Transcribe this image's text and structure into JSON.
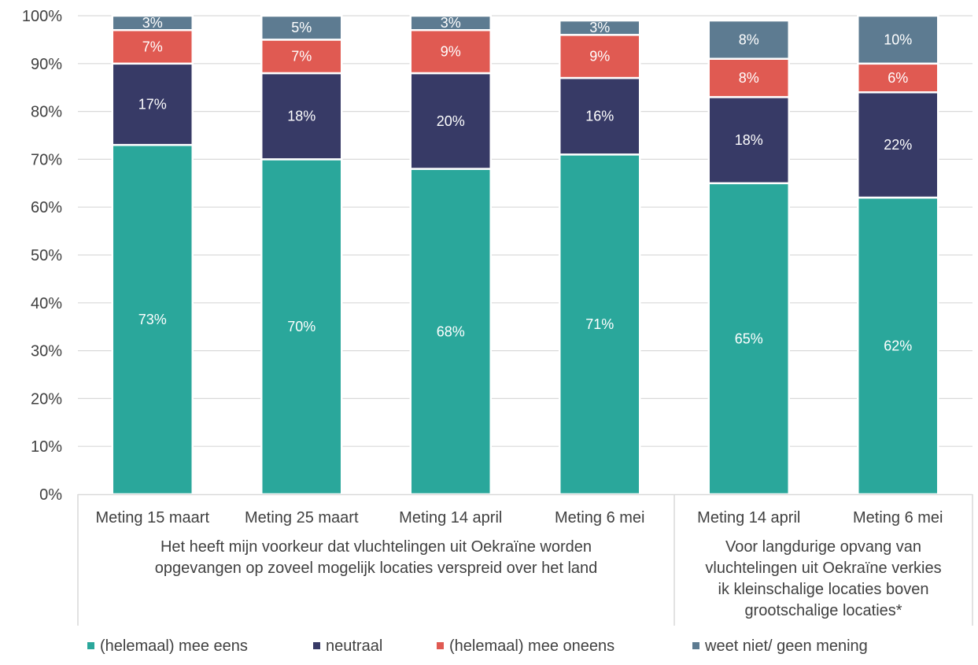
{
  "chart_data": {
    "type": "bar",
    "stacked": true,
    "ylim": [
      0,
      100
    ],
    "y_ticks": [
      "0%",
      "10%",
      "20%",
      "30%",
      "40%",
      "50%",
      "60%",
      "70%",
      "80%",
      "90%",
      "100%"
    ],
    "grid": true,
    "legend_position": "bottom",
    "categories": [
      "Meting 15 maart",
      "Meting 25 maart",
      "Meting 14 april",
      "Meting 6 mei",
      "Meting 14 april",
      "Meting 6 mei"
    ],
    "groups": [
      {
        "label": [
          "Het heeft mijn voorkeur dat vluchtelingen uit Oekraïne worden",
          "opgevangen op zoveel mogelijk locaties verspreid over het land"
        ],
        "categories": [
          0,
          1,
          2,
          3
        ]
      },
      {
        "label": [
          "Voor  langdurige opvang van",
          "vluchtelingen uit Oekraïne verkies",
          "ik kleinschalige locaties boven",
          "grootschalige locaties*"
        ],
        "categories": [
          4,
          5
        ]
      }
    ],
    "series": [
      {
        "name": "(helemaal) mee eens",
        "color": "#2aa79b",
        "values": [
          73,
          70,
          68,
          71,
          65,
          62
        ],
        "labels": [
          "73%",
          "70%",
          "68%",
          "71%",
          "65%",
          "62%"
        ]
      },
      {
        "name": "neutraal",
        "color": "#373a66",
        "values": [
          17,
          18,
          20,
          16,
          18,
          22
        ],
        "labels": [
          "17%",
          "18%",
          "20%",
          "16%",
          "18%",
          "22%"
        ]
      },
      {
        "name": "(helemaal) mee oneens",
        "color": "#e05a52",
        "values": [
          7,
          7,
          9,
          9,
          8,
          6
        ],
        "labels": [
          "7%",
          "7%",
          "9%",
          "9%",
          "8%",
          "6%"
        ]
      },
      {
        "name": "weet niet/ geen mening",
        "color": "#5d7b91",
        "values": [
          3,
          5,
          3,
          3,
          8,
          10
        ],
        "labels": [
          "3%",
          "5%",
          "3%",
          "3%",
          "8%",
          "10%"
        ]
      }
    ]
  }
}
